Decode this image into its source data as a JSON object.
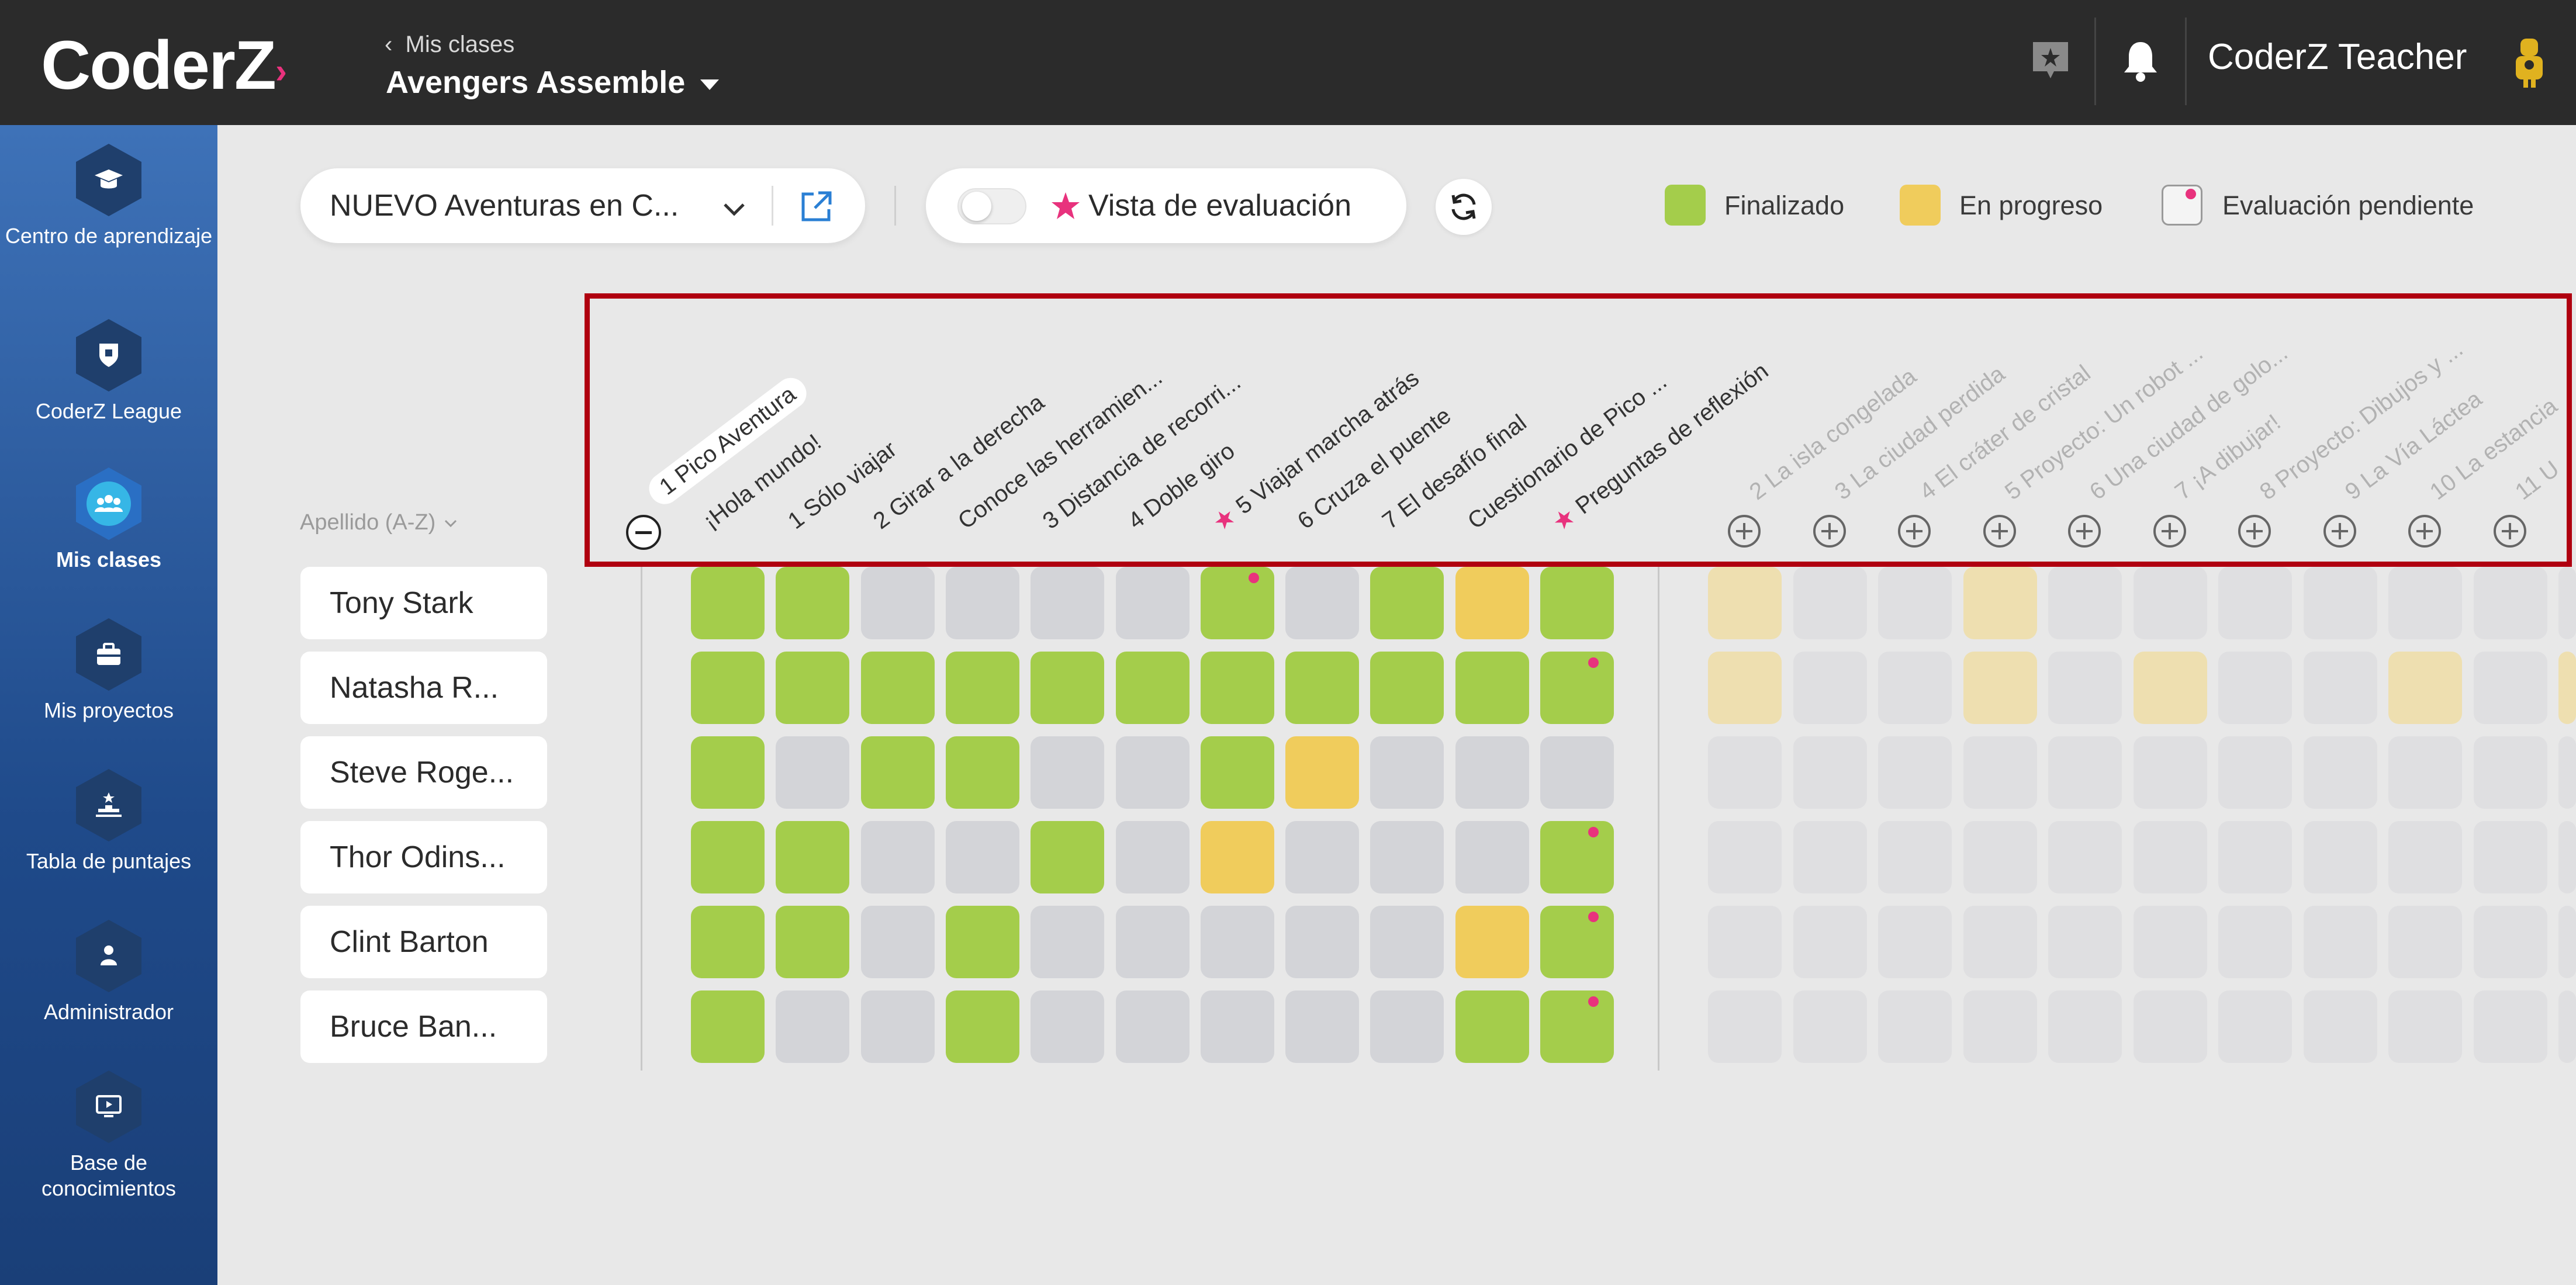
{
  "header": {
    "logo": "CoderZ",
    "breadcrumb": "Mis clases",
    "class_name": "Avengers Assemble",
    "teacher_name": "CoderZ Teacher"
  },
  "sidebar": {
    "items": [
      {
        "label": "Centro de aprendizaje",
        "icon": "graduation-cap-icon"
      },
      {
        "label": "CoderZ League",
        "icon": "league-shield-icon"
      },
      {
        "label": "Mis clases",
        "icon": "group-icon",
        "active": true
      },
      {
        "label": "Mis proyectos",
        "icon": "briefcase-icon"
      },
      {
        "label": "Tabla de puntajes",
        "icon": "podium-icon"
      },
      {
        "label": "Administrador",
        "icon": "person-icon"
      },
      {
        "label": "Base de conocimientos",
        "icon": "monitor-icon"
      }
    ]
  },
  "toolbar": {
    "course_select": "NUEVO Aventuras en C...",
    "eval_view_label": "Vista de evaluación"
  },
  "legend": {
    "done": "Finalizado",
    "progress": "En progreso",
    "pending": "Evaluación pendiente",
    "colors": {
      "done": "#a4cd4b",
      "progress": "#f0cc5c",
      "empty": "#d3d4d8",
      "pending_dot": "#e8327d"
    }
  },
  "sort_label": "Apellido (A-Z)",
  "active_chapter": {
    "title": "1 Pico Aventura",
    "missions": [
      {
        "label": "¡Hola mundo!",
        "starred": false
      },
      {
        "label": "1 Sólo viajar",
        "starred": false
      },
      {
        "label": "2 Girar a la derecha",
        "starred": false
      },
      {
        "label": "Conoce las herramien...",
        "starred": false
      },
      {
        "label": "3 Distancia de recorri...",
        "starred": false
      },
      {
        "label": "4 Doble giro",
        "starred": false
      },
      {
        "label": "5 Viajar marcha atrás",
        "starred": true
      },
      {
        "label": "6 Cruza el puente",
        "starred": false
      },
      {
        "label": "7 El desafío final",
        "starred": false
      },
      {
        "label": "Cuestionario de Pico ...",
        "starred": false
      },
      {
        "label": "Preguntas de reflexión",
        "starred": true
      }
    ]
  },
  "other_chapters": [
    "2 La isla congelada",
    "3 La ciudad perdida",
    "4 El cráter de cristal",
    "5 Proyecto: Un robot ...",
    "6 Una ciudad de golo...",
    "7 ¡A dibujar!",
    "8 Proyecto: Dibujos y ...",
    "9 La Vía Láctea",
    "10 La estancia",
    "11 U"
  ],
  "students": [
    {
      "name": "Tony Stark",
      "cells": [
        "d",
        "d",
        "e",
        "e",
        "e",
        "e",
        "d*",
        "e",
        "d",
        "p",
        "d"
      ],
      "faded": [
        "p",
        "e",
        "e",
        "p",
        "e",
        "e",
        "e",
        "e",
        "e",
        "e",
        "e"
      ]
    },
    {
      "name": "Natasha R...",
      "cells": [
        "d",
        "d",
        "d",
        "d",
        "d",
        "d",
        "d",
        "d",
        "d",
        "d",
        "d*"
      ],
      "faded": [
        "p",
        "e",
        "e",
        "p",
        "e",
        "p",
        "e",
        "e",
        "p",
        "e",
        "p"
      ]
    },
    {
      "name": "Steve Roge...",
      "cells": [
        "d",
        "e",
        "d",
        "d",
        "e",
        "e",
        "d",
        "p",
        "e",
        "e",
        "e"
      ],
      "faded": [
        "e",
        "e",
        "e",
        "e",
        "e",
        "e",
        "e",
        "e",
        "e",
        "e",
        "e"
      ]
    },
    {
      "name": "Thor Odins...",
      "cells": [
        "d",
        "d",
        "e",
        "e",
        "d",
        "e",
        "p",
        "e",
        "e",
        "e",
        "d*"
      ],
      "faded": [
        "e",
        "e",
        "e",
        "e",
        "e",
        "e",
        "e",
        "e",
        "e",
        "e",
        "e"
      ]
    },
    {
      "name": "Clint Barton",
      "cells": [
        "d",
        "d",
        "e",
        "d",
        "e",
        "e",
        "e",
        "e",
        "e",
        "p",
        "d*"
      ],
      "faded": [
        "e",
        "e",
        "e",
        "e",
        "e",
        "e",
        "e",
        "e",
        "e",
        "e",
        "e"
      ]
    },
    {
      "name": "Bruce Ban...",
      "cells": [
        "d",
        "e",
        "e",
        "d",
        "e",
        "e",
        "e",
        "e",
        "e",
        "d",
        "d*"
      ],
      "faded": [
        "e",
        "e",
        "e",
        "e",
        "e",
        "e",
        "e",
        "e",
        "e",
        "e",
        "e"
      ]
    }
  ]
}
